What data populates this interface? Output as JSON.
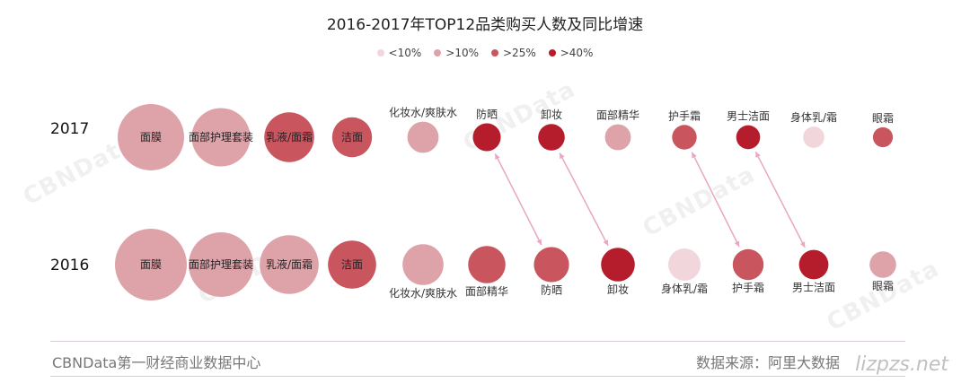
{
  "chart_data": {
    "type": "bubble-comparison",
    "title": "2016-2017年TOP12品类购买人数及同比增速",
    "legend": [
      {
        "label": "<10%",
        "color": "#f1d7dc"
      },
      {
        "label": ">10%",
        "color": "#dda3a9"
      },
      {
        "label": ">25%",
        "color": "#c9555f"
      },
      {
        "label": ">40%",
        "color": "#b51d2c"
      }
    ],
    "rows": [
      {
        "year": "2017",
        "items": [
          {
            "name": "面膜",
            "size": 100,
            "tier": ">10%"
          },
          {
            "name": "面部护理套装",
            "size": 88,
            "tier": ">10%"
          },
          {
            "name": "乳液/面霜",
            "size": 75,
            "tier": ">25%"
          },
          {
            "name": "洁面",
            "size": 60,
            "tier": ">25%"
          },
          {
            "name": "化妆水/爽肤水",
            "size": 47,
            "tier": ">10%"
          },
          {
            "name": "防晒",
            "size": 42,
            "tier": ">40%"
          },
          {
            "name": "卸妆",
            "size": 40,
            "tier": ">40%"
          },
          {
            "name": "面部精华",
            "size": 39,
            "tier": ">10%"
          },
          {
            "name": "护手霜",
            "size": 37,
            "tier": ">25%"
          },
          {
            "name": "男士洁面",
            "size": 36,
            "tier": ">40%"
          },
          {
            "name": "身体乳/霜",
            "size": 32,
            "tier": "<10%"
          },
          {
            "name": "眼霜",
            "size": 30,
            "tier": ">25%"
          }
        ]
      },
      {
        "year": "2016",
        "items": [
          {
            "name": "面膜",
            "size": 100,
            "tier": ">10%"
          },
          {
            "name": "面部护理套装",
            "size": 90,
            "tier": ">10%"
          },
          {
            "name": "乳液/面霜",
            "size": 82,
            "tier": ">10%"
          },
          {
            "name": "洁面",
            "size": 67,
            "tier": ">25%"
          },
          {
            "name": "化妆水/爽肤水",
            "size": 57,
            "tier": ">10%"
          },
          {
            "name": "面部精华",
            "size": 52,
            "tier": ">25%"
          },
          {
            "name": "防晒",
            "size": 49,
            "tier": ">25%"
          },
          {
            "name": "卸妆",
            "size": 47,
            "tier": ">40%"
          },
          {
            "name": "身体乳/霜",
            "size": 45,
            "tier": "<10%"
          },
          {
            "name": "护手霜",
            "size": 43,
            "tier": ">25%"
          },
          {
            "name": "男士洁面",
            "size": 41,
            "tier": ">40%"
          },
          {
            "name": "眼霜",
            "size": 37,
            "tier": ">10%"
          }
        ]
      }
    ],
    "rank_changes": [
      {
        "name": "防晒",
        "from_rank": 7,
        "to_rank": 6
      },
      {
        "name": "卸妆",
        "from_rank": 8,
        "to_rank": 7
      },
      {
        "name": "护手霜",
        "from_rank": 10,
        "to_rank": 9
      },
      {
        "name": "男士洁面",
        "from_rank": 11,
        "to_rank": 10
      }
    ]
  },
  "footer": {
    "brand": "CBNData第一财经商业数据中心",
    "source": "数据来源：阿里大数据"
  },
  "watermark": {
    "brand": "CBNData",
    "tagline": "第一财经商业数据中心",
    "site": "lizpzs.net"
  }
}
